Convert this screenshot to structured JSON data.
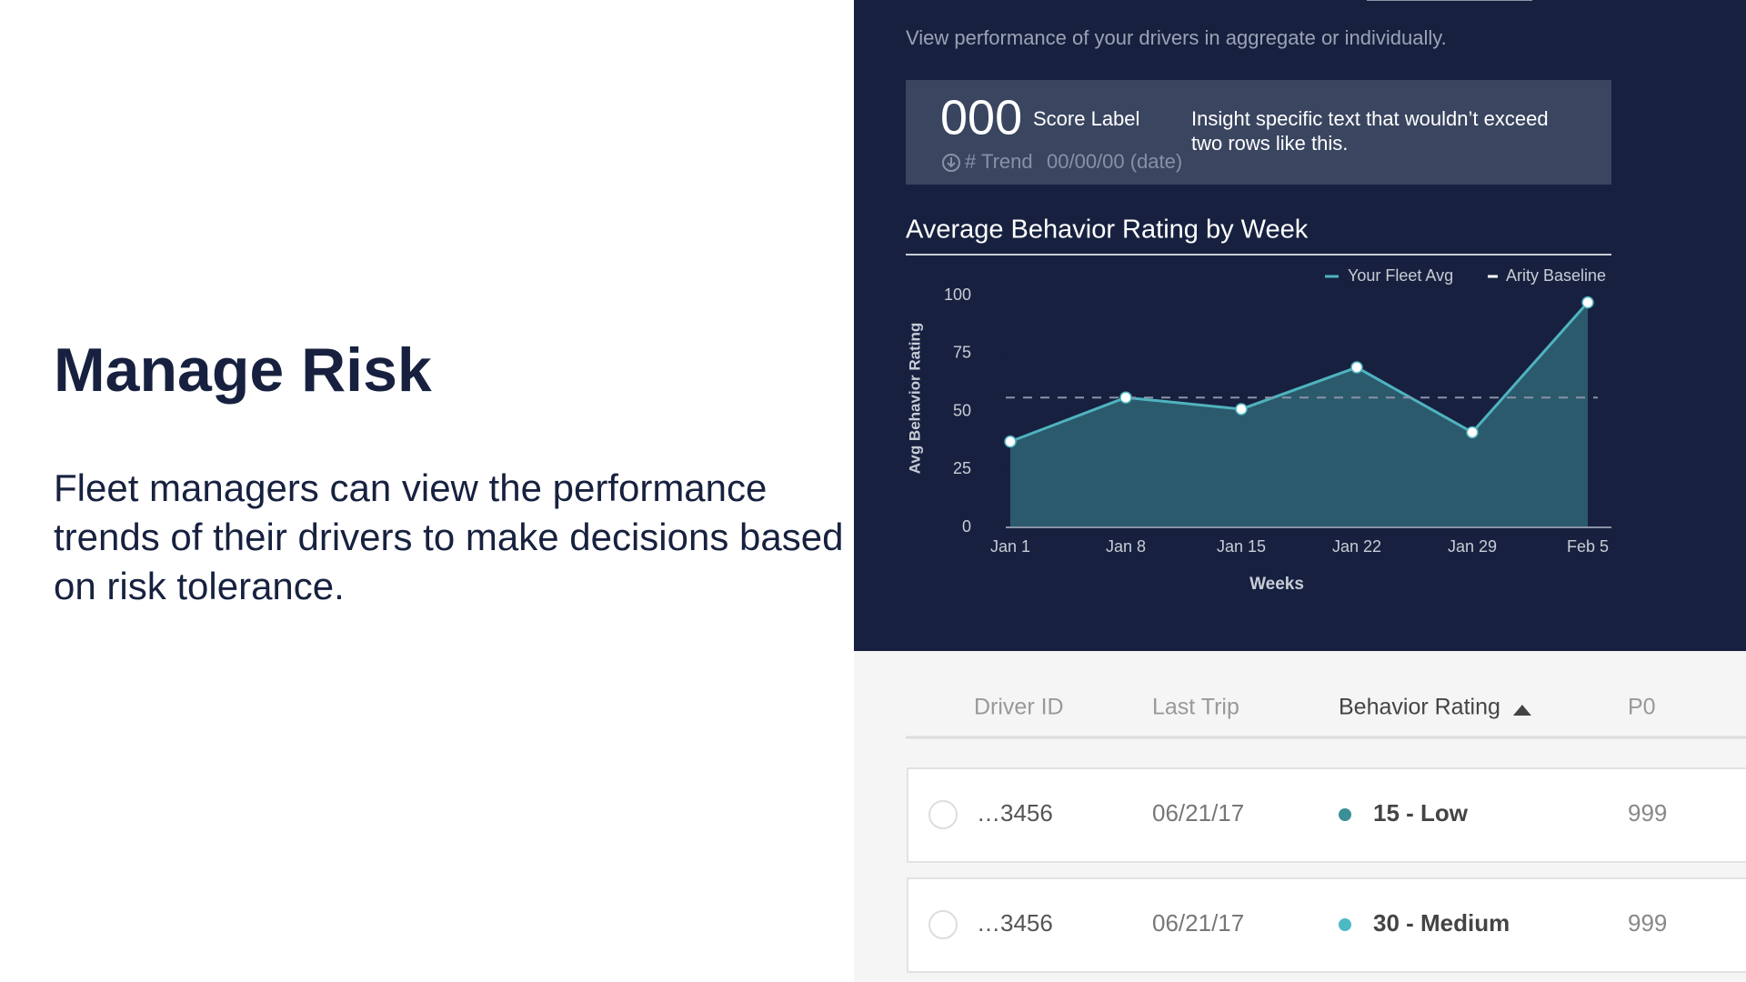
{
  "left": {
    "title": "Manage Risk",
    "body": "Fleet managers can view the performance trends of their drivers to make decisions based on risk tolerance."
  },
  "panel": {
    "subtitle": "View performance of your drivers in aggregate or individually.",
    "score": "000",
    "score_label": "Score Label",
    "trend": "# Trend",
    "trend_date": "00/00/00 (date)",
    "insight": [
      "Insight specific text that wouldn’t exceed",
      "two rows like this."
    ]
  },
  "chart_data": {
    "type": "line",
    "title": "Average Behavior Rating by Week",
    "x_label": "Weeks",
    "y_label": "Avg Behavior Rating",
    "categories": [
      "Jan 1",
      "Jan 8",
      "Jan 15",
      "Jan 22",
      "Jan 29",
      "Feb 5"
    ],
    "series": [
      {
        "name": "Your Fleet Avg",
        "color": "#4fb3bf",
        "area_color": "#2b5a6d",
        "values": [
          37,
          56,
          51,
          69,
          41,
          97
        ]
      }
    ],
    "baseline": {
      "name": "Arity Baseline",
      "color": "#8a93a6",
      "value": 56
    },
    "ylim": [
      0,
      100
    ],
    "yticks": [
      0,
      25,
      50,
      75,
      100
    ],
    "legend": "top-right"
  },
  "table": {
    "headers": [
      "Driver ID",
      "Last Trip",
      "Behavior Rating",
      "P0"
    ],
    "sort_column": 2,
    "rows": [
      {
        "id": "…3456",
        "last_trip": "06/21/17",
        "rating": "15 - Low",
        "rating_color": "#3b8f97",
        "p0": "999"
      },
      {
        "id": "…3456",
        "last_trip": "06/21/17",
        "rating": "30 - Medium",
        "rating_color": "#4db9c5",
        "p0": "999"
      }
    ]
  }
}
